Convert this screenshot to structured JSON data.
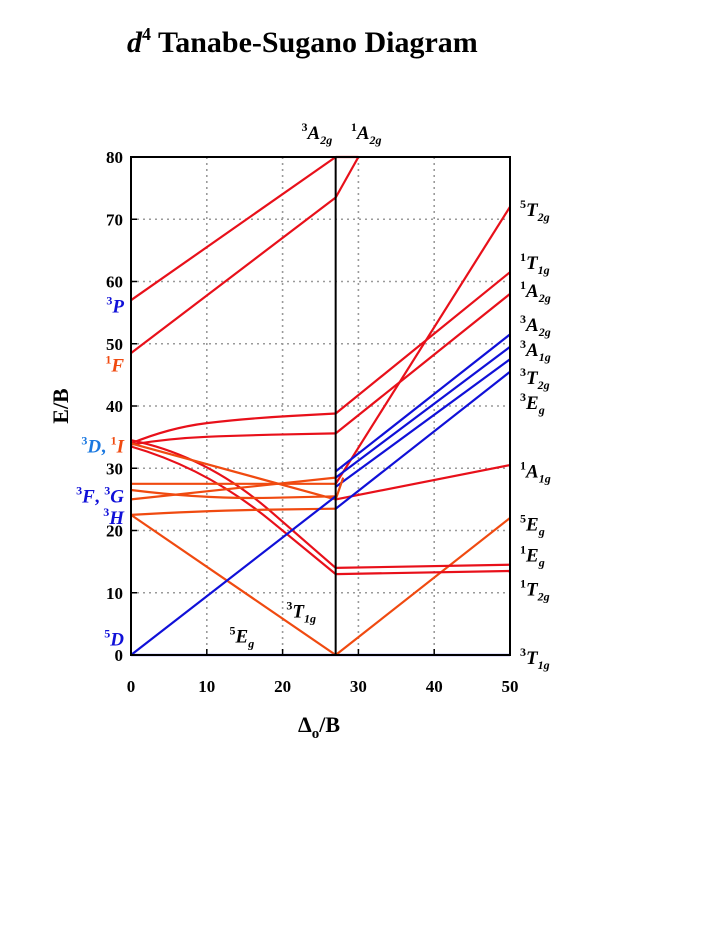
{
  "chart_data": {
    "type": "line",
    "title": {
      "main": "d",
      "sup": "4",
      "rest": " Tanabe-Sugano Diagram"
    },
    "xlabel": {
      "delta": "Δ",
      "sub": "o",
      "rest": "/B"
    },
    "ylabel": "E/B",
    "xlim": [
      0,
      50
    ],
    "ylim": [
      0,
      80
    ],
    "xticks": [
      0,
      10,
      20,
      30,
      40,
      50
    ],
    "yticks": [
      0,
      10,
      20,
      30,
      40,
      50,
      60,
      70,
      80
    ],
    "grid": true,
    "crossover": 27,
    "colors": {
      "red": "#e8101a",
      "orange": "#f04a10",
      "blue": "#1010d8",
      "lightblue": "#1a78e0"
    },
    "series": [
      {
        "color": "red",
        "x": [
          0,
          27
        ],
        "y": [
          57,
          80
        ]
      },
      {
        "color": "red",
        "x": [
          0,
          27
        ],
        "y": [
          48.5,
          73.5
        ]
      },
      {
        "color": "red",
        "x": [
          27,
          30
        ],
        "y": [
          73.5,
          80
        ]
      },
      {
        "color": "red",
        "x": [
          27,
          30
        ],
        "y": [
          80,
          80
        ]
      },
      {
        "color": "red",
        "x": [
          0,
          5,
          15,
          27
        ],
        "y": [
          34,
          36.5,
          38,
          38.8
        ]
      },
      {
        "color": "red",
        "x": [
          0,
          5,
          15,
          27
        ],
        "y": [
          33.8,
          34.8,
          35.3,
          35.6
        ]
      },
      {
        "color": "red",
        "x": [
          0,
          10,
          27
        ],
        "y": [
          34.5,
          32,
          14
        ]
      },
      {
        "color": "red",
        "x": [
          0,
          10,
          27
        ],
        "y": [
          33.5,
          30,
          13
        ]
      },
      {
        "color": "orange",
        "x": [
          0,
          27
        ],
        "y": [
          27.5,
          27.5
        ]
      },
      {
        "color": "orange",
        "x": [
          0,
          27
        ],
        "y": [
          25,
          28.5
        ]
      },
      {
        "color": "orange",
        "x": [
          0,
          10,
          27
        ],
        "y": [
          26.5,
          25,
          25.5
        ]
      },
      {
        "color": "orange",
        "x": [
          0,
          10,
          27
        ],
        "y": [
          22.5,
          23.2,
          23.5
        ]
      },
      {
        "color": "orange",
        "x": [
          0,
          27
        ],
        "y": [
          22.5,
          0
        ]
      },
      {
        "color": "orange",
        "x": [
          0,
          27
        ],
        "y": [
          34,
          25
        ]
      },
      {
        "color": "blue",
        "x": [
          0,
          27
        ],
        "y": [
          0,
          25.5
        ]
      },
      {
        "color": "blue",
        "x": [
          0,
          50
        ],
        "y": [
          0,
          0
        ]
      },
      {
        "color": "red",
        "x": [
          27,
          50
        ],
        "y": [
          38.8,
          61.5
        ]
      },
      {
        "color": "red",
        "x": [
          27,
          50
        ],
        "y": [
          35.6,
          58
        ]
      },
      {
        "color": "red",
        "x": [
          27,
          50
        ],
        "y": [
          27.5,
          72
        ]
      },
      {
        "color": "red",
        "x": [
          27,
          50
        ],
        "y": [
          25,
          30.5
        ]
      },
      {
        "color": "orange",
        "x": [
          27,
          50
        ],
        "y": [
          0,
          22
        ]
      },
      {
        "color": "red",
        "x": [
          27,
          50
        ],
        "y": [
          14,
          14.5
        ]
      },
      {
        "color": "red",
        "x": [
          27,
          50
        ],
        "y": [
          13,
          13.5
        ]
      },
      {
        "color": "blue",
        "x": [
          27,
          50
        ],
        "y": [
          29.5,
          51.5
        ]
      },
      {
        "color": "blue",
        "x": [
          27,
          50
        ],
        "y": [
          28.5,
          49.5
        ]
      },
      {
        "color": "blue",
        "x": [
          27,
          50
        ],
        "y": [
          27,
          47.5
        ]
      },
      {
        "color": "blue",
        "x": [
          27,
          50
        ],
        "y": [
          23.5,
          45.5
        ]
      },
      {
        "color": "orange",
        "x": [
          27,
          28
        ],
        "y": [
          25,
          28.5
        ]
      }
    ],
    "left_labels": [
      {
        "y": 56,
        "color": "blue",
        "parts": [
          [
            "3",
            "sup"
          ],
          [
            "P",
            "main"
          ]
        ]
      },
      {
        "y": 46.5,
        "color": "orange",
        "parts": [
          [
            "1",
            "sup"
          ],
          [
            "F",
            "main"
          ]
        ]
      },
      {
        "y": 33.5,
        "parts": [
          [
            "3",
            "sup",
            "lightblue"
          ],
          [
            "D",
            "main",
            "lightblue"
          ],
          [
            ", ",
            "plain",
            "lightblue"
          ],
          [
            "1",
            "sup",
            "orange"
          ],
          [
            "I",
            "main",
            "orange"
          ]
        ]
      },
      {
        "y": 25.5,
        "color": "blue",
        "parts": [
          [
            "3",
            "sup"
          ],
          [
            "F",
            "main"
          ],
          [
            ", ",
            "plain"
          ],
          [
            "3",
            "sup"
          ],
          [
            "G",
            "main"
          ]
        ]
      },
      {
        "y": 22,
        "color": "blue",
        "parts": [
          [
            "3",
            "sup"
          ],
          [
            "H",
            "main"
          ]
        ]
      },
      {
        "y": 2.5,
        "color": "blue",
        "parts": [
          [
            "5",
            "sup"
          ],
          [
            "D",
            "main"
          ]
        ]
      }
    ],
    "right_labels": [
      {
        "y": 71.5,
        "parts": [
          [
            "5",
            "sup"
          ],
          [
            "T",
            "main"
          ],
          [
            "2g",
            "sub"
          ]
        ]
      },
      {
        "y": 63,
        "parts": [
          [
            "1",
            "sup"
          ],
          [
            "T",
            "main"
          ],
          [
            "1g",
            "sub"
          ]
        ]
      },
      {
        "y": 58.5,
        "parts": [
          [
            "1",
            "sup"
          ],
          [
            "A",
            "main"
          ],
          [
            "2g",
            "sub"
          ]
        ]
      },
      {
        "y": 53,
        "parts": [
          [
            "3",
            "sup"
          ],
          [
            "A",
            "main"
          ],
          [
            "2g",
            "sub"
          ]
        ]
      },
      {
        "y": 49,
        "parts": [
          [
            "3",
            "sup"
          ],
          [
            "A",
            "main"
          ],
          [
            "1g",
            "sub"
          ]
        ]
      },
      {
        "y": 44.5,
        "parts": [
          [
            "3",
            "sup"
          ],
          [
            "T",
            "main"
          ],
          [
            "2g",
            "sub"
          ]
        ]
      },
      {
        "y": 40.5,
        "parts": [
          [
            "3",
            "sup"
          ],
          [
            "E",
            "main"
          ],
          [
            "g",
            "sub"
          ]
        ]
      },
      {
        "y": 29.5,
        "parts": [
          [
            "1",
            "sup"
          ],
          [
            "A",
            "main"
          ],
          [
            "1g",
            "sub"
          ]
        ]
      },
      {
        "y": 21,
        "parts": [
          [
            "5",
            "sup"
          ],
          [
            "E",
            "main"
          ],
          [
            "g",
            "sub"
          ]
        ]
      },
      {
        "y": 16,
        "parts": [
          [
            "1",
            "sup"
          ],
          [
            "E",
            "main"
          ],
          [
            "g",
            "sub"
          ]
        ]
      },
      {
        "y": 10.5,
        "parts": [
          [
            "1",
            "sup"
          ],
          [
            "T",
            "main"
          ],
          [
            "2g",
            "sub"
          ]
        ]
      },
      {
        "y": -0.5,
        "parts": [
          [
            "3",
            "sup"
          ],
          [
            "T",
            "main"
          ],
          [
            "1g",
            "sub"
          ]
        ]
      }
    ],
    "inner_labels": [
      {
        "x": 20.5,
        "y": 7,
        "parts": [
          [
            "3",
            "sup"
          ],
          [
            "T",
            "main"
          ],
          [
            "1g",
            "sub"
          ]
        ]
      },
      {
        "x": 13,
        "y": 3,
        "parts": [
          [
            "5",
            "sup"
          ],
          [
            "E",
            "main"
          ],
          [
            "g",
            "sub"
          ]
        ]
      }
    ],
    "top_labels": [
      {
        "x": 22.5,
        "parts": [
          [
            "3",
            "sup"
          ],
          [
            "A",
            "main"
          ],
          [
            "2g",
            "sub"
          ]
        ]
      },
      {
        "x": 29,
        "parts": [
          [
            "1",
            "sup"
          ],
          [
            "A",
            "main"
          ],
          [
            "2g",
            "sub"
          ]
        ]
      }
    ]
  }
}
